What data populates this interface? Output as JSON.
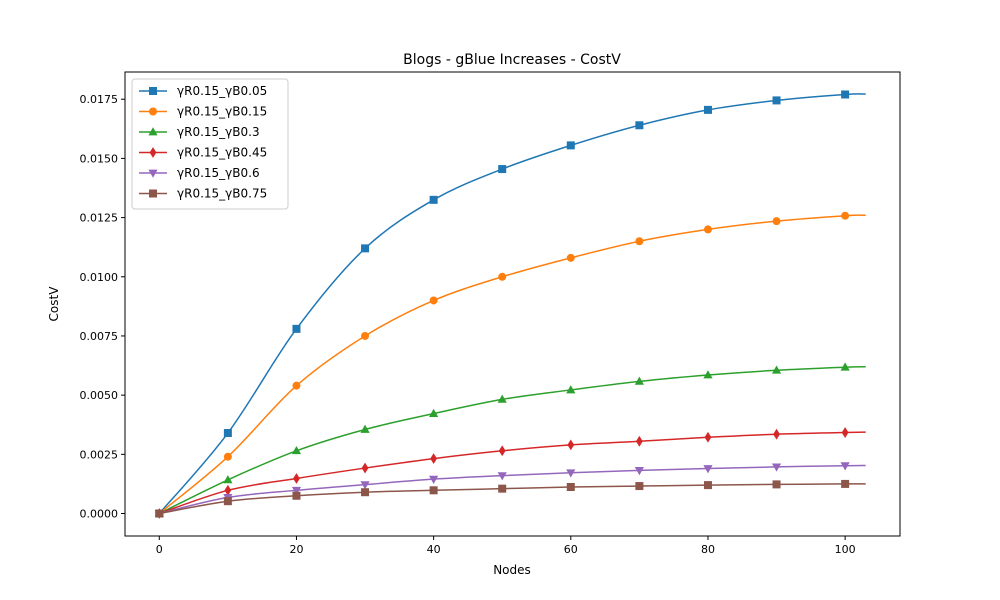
{
  "chart_data": {
    "type": "line",
    "title": "Blogs - gBlue Increases - CostV",
    "xlabel": "Nodes",
    "ylabel": "CostV",
    "xlim": [
      -5,
      108
    ],
    "ylim": [
      -0.00095,
      0.01865
    ],
    "xticks": [
      0,
      20,
      40,
      60,
      80,
      100
    ],
    "xtick_labels": [
      "0",
      "20",
      "40",
      "60",
      "80",
      "100"
    ],
    "yticks": [
      0,
      0.0025,
      0.005,
      0.0075,
      0.01,
      0.0125,
      0.015,
      0.0175
    ],
    "ytick_labels": [
      "0.0000",
      "0.0025",
      "0.0050",
      "0.0075",
      "0.0100",
      "0.0125",
      "0.0150",
      "0.0175"
    ],
    "grid": false,
    "legend_position": "top-left",
    "x": [
      0,
      10,
      20,
      30,
      40,
      50,
      60,
      70,
      80,
      90,
      100,
      103
    ],
    "series": [
      {
        "name": "γR0.15_γB0.05",
        "color": "#1f77b4",
        "marker": "square",
        "values": [
          0,
          0.0034,
          0.0078,
          0.0112,
          0.01325,
          0.01455,
          0.01555,
          0.0164,
          0.01705,
          0.01745,
          0.0177,
          0.01772
        ]
      },
      {
        "name": "γR0.15_γB0.15",
        "color": "#ff7f0e",
        "marker": "circle",
        "values": [
          0,
          0.0024,
          0.0054,
          0.0075,
          0.009,
          0.01,
          0.0108,
          0.0115,
          0.012,
          0.01235,
          0.01258,
          0.0126
        ]
      },
      {
        "name": "γR0.15_γB0.3",
        "color": "#2ca02c",
        "marker": "triangle-up",
        "values": [
          0,
          0.00142,
          0.00265,
          0.00355,
          0.00422,
          0.00482,
          0.00522,
          0.00558,
          0.00585,
          0.00605,
          0.00618,
          0.0062
        ]
      },
      {
        "name": "γR0.15_γB0.45",
        "color": "#d62728",
        "marker": "diamond",
        "values": [
          0,
          0.00098,
          0.00148,
          0.00192,
          0.00232,
          0.00265,
          0.0029,
          0.00305,
          0.00322,
          0.00335,
          0.00342,
          0.00344
        ]
      },
      {
        "name": "γR0.15_γB0.6",
        "color": "#9467bd",
        "marker": "triangle-down",
        "values": [
          0,
          0.00068,
          0.00098,
          0.00122,
          0.00145,
          0.0016,
          0.00172,
          0.00182,
          0.0019,
          0.00197,
          0.00202,
          0.00203
        ]
      },
      {
        "name": "γR0.15_γB0.75",
        "color": "#8c564b",
        "marker": "square",
        "values": [
          0,
          0.00052,
          0.00075,
          0.0009,
          0.00098,
          0.00105,
          0.00112,
          0.00116,
          0.0012,
          0.00123,
          0.00125,
          0.00125
        ]
      }
    ]
  }
}
